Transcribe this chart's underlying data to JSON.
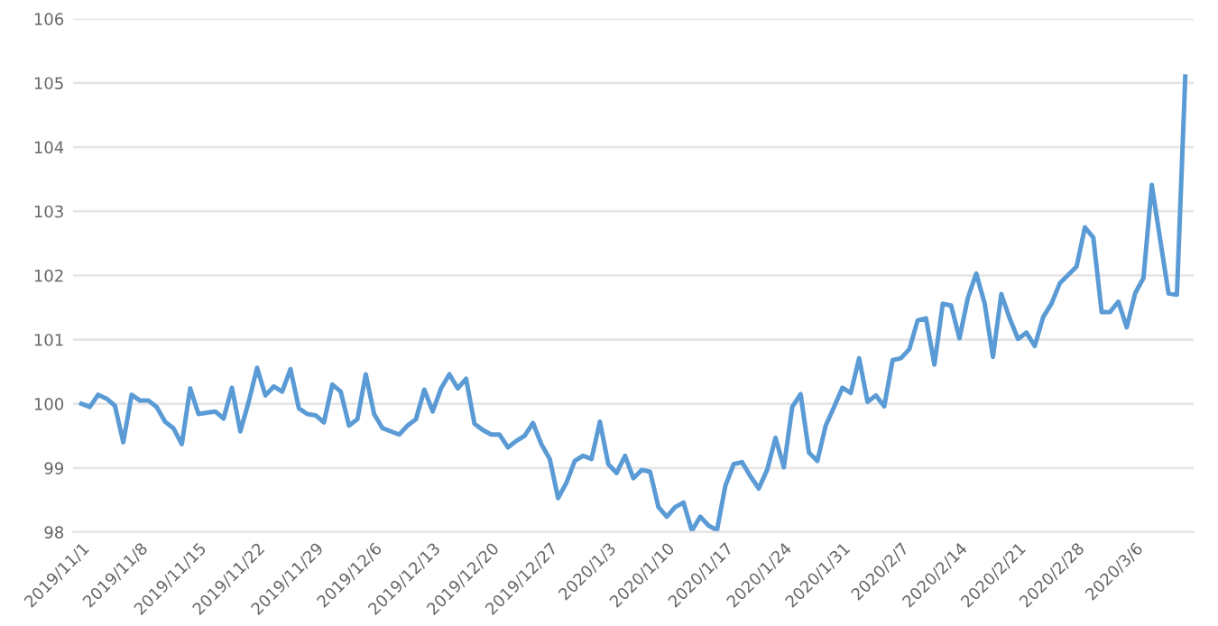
{
  "chart_data": {
    "type": "line",
    "x": [
      "2019-11-01",
      "2019-11-02",
      "2019-11-03",
      "2019-11-04",
      "2019-11-05",
      "2019-11-06",
      "2019-11-07",
      "2019-11-08",
      "2019-11-09",
      "2019-11-10",
      "2019-11-11",
      "2019-11-12",
      "2019-11-13",
      "2019-11-14",
      "2019-11-15",
      "2019-11-16",
      "2019-11-17",
      "2019-11-18",
      "2019-11-19",
      "2019-11-20",
      "2019-11-21",
      "2019-11-22",
      "2019-11-23",
      "2019-11-24",
      "2019-11-25",
      "2019-11-26",
      "2019-11-27",
      "2019-11-28",
      "2019-11-29",
      "2019-11-30",
      "2019-12-01",
      "2019-12-02",
      "2019-12-03",
      "2019-12-04",
      "2019-12-05",
      "2019-12-06",
      "2019-12-07",
      "2019-12-08",
      "2019-12-09",
      "2019-12-10",
      "2019-12-11",
      "2019-12-12",
      "2019-12-13",
      "2019-12-14",
      "2019-12-15",
      "2019-12-16",
      "2019-12-17",
      "2019-12-18",
      "2019-12-19",
      "2019-12-20",
      "2019-12-21",
      "2019-12-22",
      "2019-12-23",
      "2019-12-24",
      "2019-12-25",
      "2019-12-26",
      "2019-12-27",
      "2019-12-28",
      "2019-12-29",
      "2019-12-30",
      "2019-12-31",
      "2020-01-01",
      "2020-01-02",
      "2020-01-03",
      "2020-01-04",
      "2020-01-05",
      "2020-01-06",
      "2020-01-07",
      "2020-01-08",
      "2020-01-09",
      "2020-01-10",
      "2020-01-11",
      "2020-01-12",
      "2020-01-13",
      "2020-01-14",
      "2020-01-15",
      "2020-01-16",
      "2020-01-17",
      "2020-01-18",
      "2020-01-19",
      "2020-01-20",
      "2020-01-21",
      "2020-01-22",
      "2020-01-23",
      "2020-01-24",
      "2020-01-25",
      "2020-01-26",
      "2020-01-27",
      "2020-01-28",
      "2020-01-29",
      "2020-01-30",
      "2020-01-31",
      "2020-02-01",
      "2020-02-02",
      "2020-02-03",
      "2020-02-04",
      "2020-02-05",
      "2020-02-06",
      "2020-02-07",
      "2020-02-08",
      "2020-02-09",
      "2020-02-10",
      "2020-02-11",
      "2020-02-12",
      "2020-02-13",
      "2020-02-14",
      "2020-02-15",
      "2020-02-16",
      "2020-02-17",
      "2020-02-18",
      "2020-02-19",
      "2020-02-20",
      "2020-02-21",
      "2020-02-22",
      "2020-02-23",
      "2020-02-24",
      "2020-02-25",
      "2020-02-26",
      "2020-02-27",
      "2020-02-28",
      "2020-02-29",
      "2020-03-01",
      "2020-03-02",
      "2020-03-03",
      "2020-03-04",
      "2020-03-05",
      "2020-03-06",
      "2020-03-07",
      "2020-03-08",
      "2020-03-09",
      "2020-03-10",
      "2020-03-11",
      "2020-03-12"
    ],
    "series": [
      {
        "color": "#5b9bd5",
        "values": [
          100.0,
          99.95,
          100.14,
          100.08,
          99.97,
          99.4,
          100.14,
          100.05,
          100.05,
          99.95,
          99.72,
          99.62,
          99.37,
          100.24,
          99.84,
          99.86,
          99.88,
          99.77,
          100.25,
          99.57,
          100.03,
          100.56,
          100.13,
          100.27,
          100.19,
          100.54,
          99.93,
          99.84,
          99.82,
          99.71,
          100.3,
          100.19,
          99.66,
          99.76,
          100.46,
          99.84,
          99.62,
          99.57,
          99.52,
          99.66,
          99.76,
          100.22,
          99.88,
          100.24,
          100.46,
          100.24,
          100.39,
          99.69,
          99.59,
          99.52,
          99.52,
          99.32,
          99.42,
          99.5,
          99.7,
          99.37,
          99.14,
          98.53,
          98.77,
          99.11,
          99.19,
          99.14,
          99.72,
          99.06,
          98.92,
          99.19,
          98.84,
          98.97,
          98.94,
          98.39,
          98.24,
          98.39,
          98.46,
          98.02,
          98.24,
          98.1,
          98.03,
          98.72,
          99.06,
          99.09,
          98.87,
          98.68,
          98.97,
          99.47,
          99.01,
          99.95,
          100.15,
          99.24,
          99.11,
          99.66,
          99.95,
          100.25,
          100.17,
          100.71,
          100.03,
          100.13,
          99.96,
          100.68,
          100.71,
          100.85,
          101.3,
          101.33,
          100.61,
          101.56,
          101.53,
          101.02,
          101.65,
          102.03,
          101.57,
          100.73,
          101.71,
          101.33,
          101.01,
          101.11,
          100.9,
          101.35,
          101.56,
          101.88,
          102.01,
          102.14,
          102.75,
          102.59,
          101.43,
          101.43,
          101.59,
          101.19,
          101.72,
          101.96,
          103.41,
          102.56,
          101.72,
          101.7,
          105.1
        ]
      }
    ],
    "xlim": [
      "2019-10-31",
      "2020-03-13"
    ],
    "xticks": [
      {
        "value": "2019-11-01",
        "label": "2019/11/1"
      },
      {
        "value": "2019-11-08",
        "label": "2019/11/8"
      },
      {
        "value": "2019-11-15",
        "label": "2019/11/15"
      },
      {
        "value": "2019-11-22",
        "label": "2019/11/22"
      },
      {
        "value": "2019-11-29",
        "label": "2019/11/29"
      },
      {
        "value": "2019-12-06",
        "label": "2019/12/6"
      },
      {
        "value": "2019-12-13",
        "label": "2019/12/13"
      },
      {
        "value": "2019-12-20",
        "label": "2019/12/20"
      },
      {
        "value": "2019-12-27",
        "label": "2019/12/27"
      },
      {
        "value": "2020-01-03",
        "label": "2020/1/3"
      },
      {
        "value": "2020-01-10",
        "label": "2020/1/10"
      },
      {
        "value": "2020-01-17",
        "label": "2020/1/17"
      },
      {
        "value": "2020-01-24",
        "label": "2020/1/24"
      },
      {
        "value": "2020-01-31",
        "label": "2020/1/31"
      },
      {
        "value": "2020-02-07",
        "label": "2020/2/7"
      },
      {
        "value": "2020-02-14",
        "label": "2020/2/14"
      },
      {
        "value": "2020-02-21",
        "label": "2020/2/21"
      },
      {
        "value": "2020-02-28",
        "label": "2020/2/28"
      },
      {
        "value": "2020-03-06",
        "label": "2020/3/6"
      }
    ],
    "ylim": [
      98,
      106
    ],
    "yticks": [
      98,
      99,
      100,
      101,
      102,
      103,
      104,
      105,
      106
    ],
    "grid": "y",
    "legend": false,
    "marker": "none",
    "line_style": "solid"
  }
}
